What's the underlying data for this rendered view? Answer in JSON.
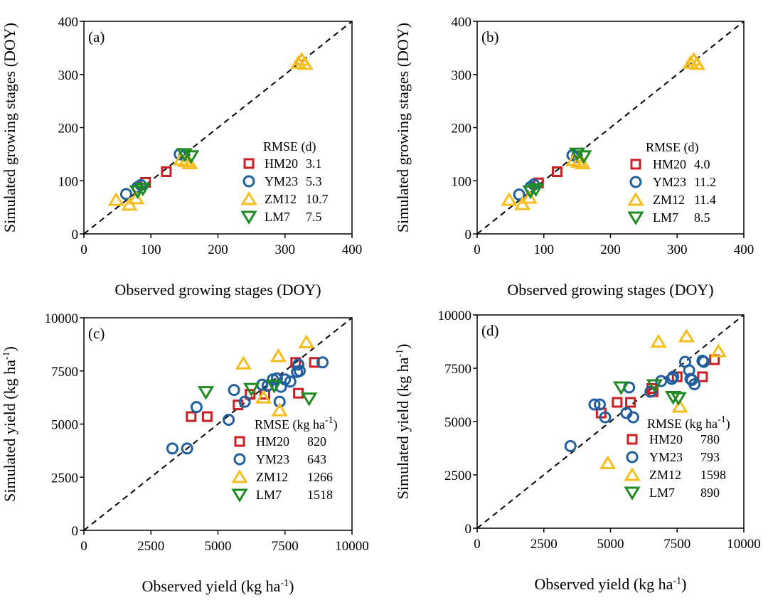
{
  "colors": {
    "HM20": "#cc1f24",
    "YM23": "#1f5f9e",
    "ZM12": "#f5be1c",
    "LM7": "#1f8c22",
    "axis": "#000000"
  },
  "chart_data": [
    {
      "id": "a",
      "type": "scatter",
      "panel_label": "(a)",
      "xlabel": "Observed growing stages (DOY)",
      "ylabel": "Simulated growing stages (DOY)",
      "xlim": [
        0,
        400
      ],
      "ylim": [
        0,
        400
      ],
      "xticks": [
        0,
        100,
        200,
        300,
        400
      ],
      "yticks": [
        0,
        100,
        200,
        300,
        400
      ],
      "xtick_labels": [
        "0",
        "100",
        "200",
        "300",
        "400"
      ],
      "ytick_labels": [
        "0",
        "100",
        "200",
        "300",
        "400"
      ],
      "reference_line": "1:1 dashed",
      "legend_title": "RMSE (d)",
      "legend_position": "bottom-right",
      "series": [
        {
          "name": "HM20",
          "marker": "square",
          "rmse": "3.1",
          "points": [
            [
              92,
              97
            ],
            [
              123,
              117
            ]
          ]
        },
        {
          "name": "YM23",
          "marker": "circle",
          "rmse": "5.3",
          "points": [
            [
              63,
              75
            ],
            [
              80,
              88
            ],
            [
              85,
              92
            ],
            [
              143,
              150
            ],
            [
              150,
              147
            ]
          ]
        },
        {
          "name": "ZM12",
          "marker": "triangle-up",
          "rmse": "10.7",
          "points": [
            [
              48,
              64
            ],
            [
              68,
              55
            ],
            [
              78,
              67
            ],
            [
              145,
              140
            ],
            [
              152,
              137
            ],
            [
              158,
              133
            ],
            [
              320,
              322
            ],
            [
              325,
              328
            ],
            [
              330,
              320
            ]
          ]
        },
        {
          "name": "LM7",
          "marker": "triangle-down",
          "rmse": "7.5",
          "points": [
            [
              80,
              80
            ],
            [
              88,
              85
            ],
            [
              150,
              150
            ],
            [
              160,
              146
            ]
          ]
        }
      ]
    },
    {
      "id": "b",
      "type": "scatter",
      "panel_label": "(b)",
      "xlabel": "Observed growing stages (DOY)",
      "ylabel": "Simulated growing stages (DOY)",
      "xlim": [
        0,
        400
      ],
      "ylim": [
        0,
        400
      ],
      "xticks": [
        0,
        100,
        200,
        300,
        400
      ],
      "yticks": [
        0,
        100,
        200,
        300,
        400
      ],
      "xtick_labels": [
        "0",
        "100",
        "200",
        "300",
        "400"
      ],
      "ytick_labels": [
        "0",
        "100",
        "200",
        "300",
        "400"
      ],
      "reference_line": "1:1 dashed",
      "legend_title": "RMSE (d)",
      "legend_position": "bottom-right",
      "series": [
        {
          "name": "HM20",
          "marker": "square",
          "rmse": "4.0",
          "points": [
            [
              92,
              96
            ],
            [
              120,
              117
            ]
          ]
        },
        {
          "name": "YM23",
          "marker": "circle",
          "rmse": "11.2",
          "points": [
            [
              63,
              74
            ],
            [
              80,
              88
            ],
            [
              85,
              93
            ],
            [
              143,
              148
            ],
            [
              150,
              145
            ]
          ]
        },
        {
          "name": "ZM12",
          "marker": "triangle-up",
          "rmse": "11.4",
          "points": [
            [
              48,
              64
            ],
            [
              68,
              56
            ],
            [
              78,
              68
            ],
            [
              145,
              139
            ],
            [
              152,
              136
            ],
            [
              158,
              133
            ],
            [
              320,
              322
            ],
            [
              325,
              328
            ],
            [
              330,
              320
            ]
          ]
        },
        {
          "name": "LM7",
          "marker": "triangle-down",
          "rmse": "8.5",
          "points": [
            [
              80,
              80
            ],
            [
              88,
              84
            ],
            [
              150,
              151
            ],
            [
              160,
              146
            ]
          ]
        }
      ]
    },
    {
      "id": "c",
      "type": "scatter",
      "panel_label": "(c)",
      "xlabel": "Observed yield (kg ha⁻¹)",
      "ylabel": "Simulated yield (kg ha⁻¹)",
      "xlim": [
        0,
        10000
      ],
      "ylim": [
        0,
        10000
      ],
      "xticks": [
        0,
        2500,
        5000,
        7500,
        10000
      ],
      "yticks": [
        0,
        2500,
        5000,
        7500,
        10000
      ],
      "xtick_labels": [
        "0",
        "2500",
        "5000",
        "7500",
        "10000"
      ],
      "ytick_labels": [
        "0",
        "2500",
        "5000",
        "7500",
        "10000"
      ],
      "reference_line": "1:1 dashed",
      "legend_title": "RMSE (kg ha⁻¹)",
      "legend_position": "bottom-right",
      "series": [
        {
          "name": "HM20",
          "marker": "square",
          "rmse": "820",
          "points": [
            [
              4000,
              5350
            ],
            [
              4600,
              5350
            ],
            [
              5750,
              5900
            ],
            [
              6200,
              6400
            ],
            [
              6750,
              6400
            ],
            [
              7900,
              7900
            ],
            [
              8000,
              6450
            ],
            [
              8600,
              7900
            ]
          ]
        },
        {
          "name": "YM23",
          "marker": "circle",
          "rmse": "643",
          "points": [
            [
              3300,
              3850
            ],
            [
              3850,
              3850
            ],
            [
              4200,
              5800
            ],
            [
              5400,
              5200
            ],
            [
              5600,
              6600
            ],
            [
              6000,
              6050
            ],
            [
              6650,
              6850
            ],
            [
              6850,
              6800
            ],
            [
              7050,
              7100
            ],
            [
              7200,
              7150
            ],
            [
              7300,
              6050
            ],
            [
              7350,
              6750
            ],
            [
              7500,
              7100
            ],
            [
              7700,
              7000
            ],
            [
              7950,
              7450
            ],
            [
              8000,
              7800
            ],
            [
              8050,
              7500
            ],
            [
              8900,
              7900
            ]
          ]
        },
        {
          "name": "ZM12",
          "marker": "triangle-up",
          "rmse": "1266",
          "points": [
            [
              5950,
              7850
            ],
            [
              6700,
              6250
            ],
            [
              7250,
              8200
            ],
            [
              7300,
              5650
            ],
            [
              8300,
              8850
            ]
          ]
        },
        {
          "name": "LM7",
          "marker": "triangle-down",
          "rmse": "1518",
          "points": [
            [
              4550,
              6500
            ],
            [
              6250,
              6650
            ],
            [
              7100,
              6800
            ],
            [
              8400,
              6200
            ]
          ]
        }
      ]
    },
    {
      "id": "d",
      "type": "scatter",
      "panel_label": "(d)",
      "xlabel": "Observed yield (kg ha⁻¹)",
      "ylabel": "Simulated yield (kg ha⁻¹)",
      "xlim": [
        0,
        10000
      ],
      "ylim": [
        0,
        10000
      ],
      "xticks": [
        0,
        2500,
        5000,
        7500,
        10000
      ],
      "yticks": [
        0,
        2500,
        5000,
        7500,
        10000
      ],
      "xtick_labels": [
        "0",
        "2500",
        "5000",
        "7500",
        "10000"
      ],
      "ytick_labels": [
        "0",
        "2500",
        "5000",
        "7500",
        "10000"
      ],
      "reference_line": "1:1 dashed",
      "legend_title": "RMSE (kg ha⁻¹)",
      "legend_position": "bottom-right",
      "series": [
        {
          "name": "HM20",
          "marker": "square",
          "rmse": "780",
          "points": [
            [
              4650,
              5400
            ],
            [
              5250,
              5900
            ],
            [
              5750,
              5900
            ],
            [
              6550,
              6550
            ],
            [
              6600,
              6400
            ],
            [
              7500,
              7100
            ],
            [
              8450,
              7100
            ],
            [
              8900,
              7900
            ]
          ]
        },
        {
          "name": "YM23",
          "marker": "circle",
          "rmse": "793",
          "points": [
            [
              3500,
              3850
            ],
            [
              4400,
              5800
            ],
            [
              4600,
              5800
            ],
            [
              4800,
              5200
            ],
            [
              5600,
              5400
            ],
            [
              5700,
              6600
            ],
            [
              5850,
              5200
            ],
            [
              6500,
              6400
            ],
            [
              6900,
              6900
            ],
            [
              7300,
              7000
            ],
            [
              7350,
              7100
            ],
            [
              7800,
              7800
            ],
            [
              7950,
              7400
            ],
            [
              8000,
              7000
            ],
            [
              8050,
              6950
            ],
            [
              8150,
              6750
            ],
            [
              8450,
              7850
            ],
            [
              8500,
              7800
            ]
          ]
        },
        {
          "name": "ZM12",
          "marker": "triangle-up",
          "rmse": "1598",
          "points": [
            [
              4900,
              3050
            ],
            [
              6800,
              8750
            ],
            [
              7600,
              5700
            ],
            [
              7850,
              9000
            ],
            [
              9050,
              8300
            ]
          ]
        },
        {
          "name": "LM7",
          "marker": "triangle-down",
          "rmse": "890",
          "points": [
            [
              5400,
              6600
            ],
            [
              6650,
              6700
            ],
            [
              7350,
              6150
            ],
            [
              7550,
              6100
            ]
          ]
        }
      ]
    }
  ]
}
